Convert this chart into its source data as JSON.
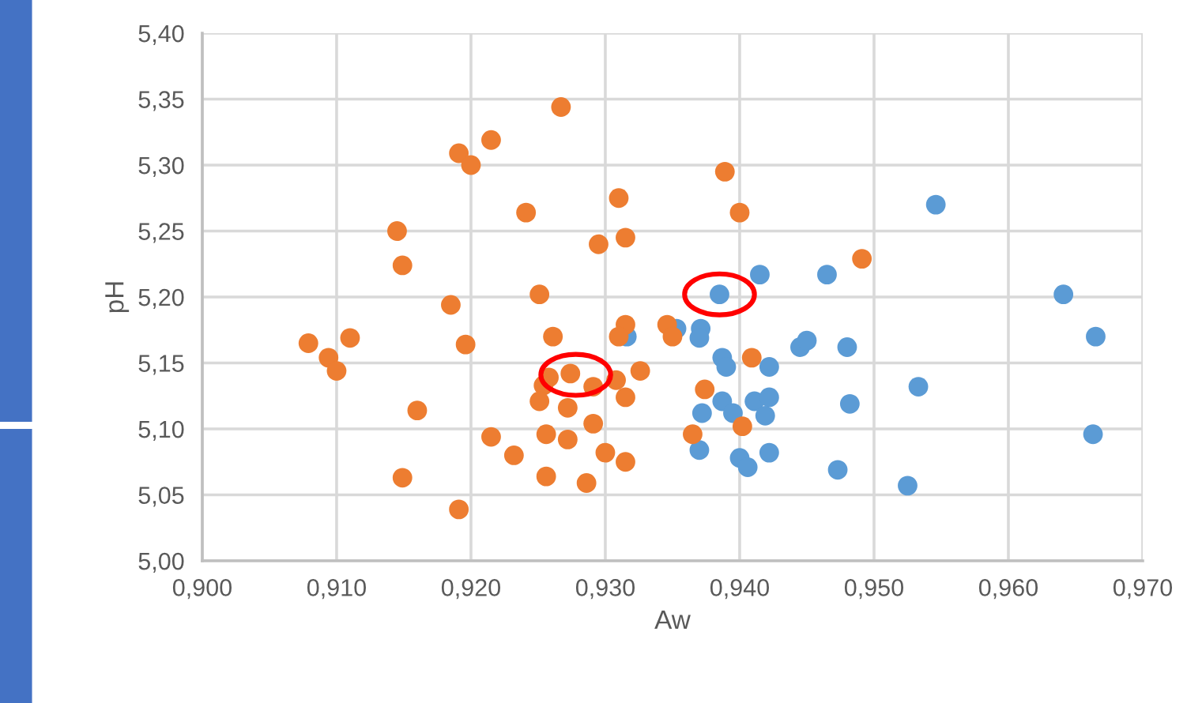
{
  "chart_data": {
    "type": "scatter",
    "xlabel": "Aw",
    "ylabel": "pH",
    "xlim": [
      0.9,
      0.97
    ],
    "ylim": [
      5.0,
      5.4
    ],
    "xticks": [
      {
        "value": 0.9,
        "label": "0,900"
      },
      {
        "value": 0.91,
        "label": "0,910"
      },
      {
        "value": 0.92,
        "label": "0,920"
      },
      {
        "value": 0.93,
        "label": "0,930"
      },
      {
        "value": 0.94,
        "label": "0,940"
      },
      {
        "value": 0.95,
        "label": "0,950"
      },
      {
        "value": 0.96,
        "label": "0,960"
      },
      {
        "value": 0.97,
        "label": "0,970"
      }
    ],
    "yticks": [
      {
        "value": 5.0,
        "label": "5,00"
      },
      {
        "value": 5.05,
        "label": "5,05"
      },
      {
        "value": 5.1,
        "label": "5,10"
      },
      {
        "value": 5.15,
        "label": "5,15"
      },
      {
        "value": 5.2,
        "label": "5,20"
      },
      {
        "value": 5.25,
        "label": "5,25"
      },
      {
        "value": 5.3,
        "label": "5,30"
      },
      {
        "value": 5.35,
        "label": "5,35"
      },
      {
        "value": 5.4,
        "label": "5,40"
      }
    ],
    "grid": true,
    "marker": "circle",
    "series": [
      {
        "color": "#ed7d31",
        "x": [
          0.9079,
          0.9094,
          0.91,
          0.911,
          0.9145,
          0.9149,
          0.916,
          0.9149,
          0.9185,
          0.9196,
          0.9191,
          0.92,
          0.9215,
          0.9215,
          0.9191,
          0.9267,
          0.9241,
          0.931,
          0.9295,
          0.9315,
          0.9251,
          0.9389,
          0.94,
          0.9261,
          0.9315,
          0.931,
          0.9346,
          0.935,
          0.9326,
          0.9258,
          0.9254,
          0.9274,
          0.9291,
          0.9308,
          0.9315,
          0.9251,
          0.9272,
          0.9291,
          0.9256,
          0.9272,
          0.9232,
          0.9256,
          0.9286,
          0.93,
          0.9315,
          0.9374,
          0.9365,
          0.9409,
          0.9402,
          0.9491
        ],
        "values": [
          5.165,
          5.154,
          5.144,
          5.169,
          5.25,
          5.224,
          5.114,
          5.063,
          5.194,
          5.164,
          5.309,
          5.3,
          5.319,
          5.094,
          5.039,
          5.344,
          5.264,
          5.275,
          5.24,
          5.245,
          5.202,
          5.295,
          5.264,
          5.17,
          5.179,
          5.17,
          5.179,
          5.17,
          5.144,
          5.139,
          5.133,
          5.142,
          5.132,
          5.137,
          5.124,
          5.121,
          5.116,
          5.104,
          5.096,
          5.092,
          5.08,
          5.064,
          5.059,
          5.082,
          5.075,
          5.13,
          5.096,
          5.154,
          5.102,
          5.229
        ]
      },
      {
        "color": "#5b9bd5",
        "x": [
          0.9316,
          0.9353,
          0.9385,
          0.9415,
          0.9371,
          0.937,
          0.9387,
          0.939,
          0.9422,
          0.9387,
          0.9395,
          0.9372,
          0.9411,
          0.9422,
          0.9419,
          0.937,
          0.94,
          0.9406,
          0.9422,
          0.9465,
          0.9546,
          0.9445,
          0.945,
          0.948,
          0.9482,
          0.9533,
          0.9473,
          0.9525,
          0.9641,
          0.9665,
          0.9663
        ],
        "values": [
          5.17,
          5.176,
          5.202,
          5.217,
          5.176,
          5.169,
          5.154,
          5.147,
          5.147,
          5.121,
          5.112,
          5.112,
          5.121,
          5.124,
          5.11,
          5.084,
          5.078,
          5.071,
          5.082,
          5.217,
          5.27,
          5.162,
          5.167,
          5.162,
          5.119,
          5.132,
          5.069,
          5.057,
          5.202,
          5.17,
          5.096
        ]
      }
    ]
  }
}
